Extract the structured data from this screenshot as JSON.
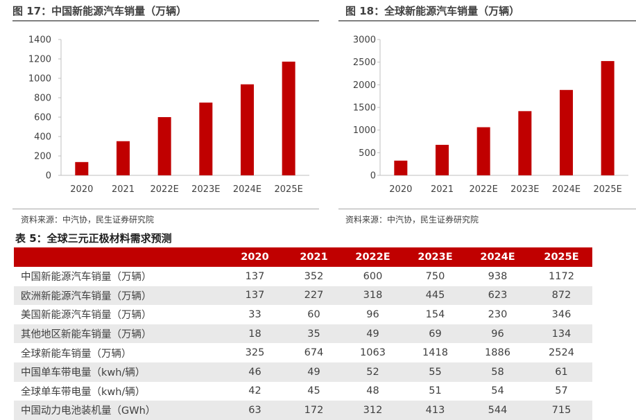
{
  "figures": [
    {
      "title": "图 17：中国新能源汽车销量（万辆）",
      "source": "资料来源：中汽协，民生证券研究院",
      "chart_data": {
        "type": "bar",
        "categories": [
          "2020",
          "2021",
          "2022E",
          "2023E",
          "2024E",
          "2025E"
        ],
        "values": [
          137,
          352,
          600,
          750,
          938,
          1172
        ],
        "ylim": [
          0,
          1400
        ],
        "yticks": [
          0,
          200,
          400,
          600,
          800,
          1000,
          1200,
          1400
        ],
        "color": "#c00000",
        "grid": false,
        "legend": "none"
      }
    },
    {
      "title": "图 18：全球新能源汽车销量（万辆）",
      "source": "资料来源：中汽协，民生证券研究院",
      "chart_data": {
        "type": "bar",
        "categories": [
          "2020",
          "2021",
          "2022E",
          "2023E",
          "2024E",
          "2025E"
        ],
        "values": [
          325,
          674,
          1063,
          1418,
          1886,
          2524
        ],
        "ylim": [
          0,
          3000
        ],
        "yticks": [
          0,
          500,
          1000,
          1500,
          2000,
          2500,
          3000
        ],
        "color": "#c00000",
        "grid": false,
        "legend": "none"
      }
    }
  ],
  "table": {
    "title": "表 5：全球三元正极材料需求预测",
    "columns": [
      "",
      "2020",
      "2021",
      "2022E",
      "2023E",
      "2024E",
      "2025E"
    ],
    "rows": [
      [
        "中国新能源汽车销量（万辆）",
        "137",
        "352",
        "600",
        "750",
        "938",
        "1172"
      ],
      [
        "欧洲新能源汽车销量（万辆）",
        "137",
        "227",
        "318",
        "445",
        "623",
        "872"
      ],
      [
        "美国新能源汽车销量（万辆）",
        "33",
        "60",
        "96",
        "154",
        "230",
        "346"
      ],
      [
        "其他地区新能车销量（万辆）",
        "18",
        "35",
        "49",
        "69",
        "96",
        "134"
      ],
      [
        "全球新能车销量（万辆）",
        "325",
        "674",
        "1063",
        "1418",
        "1886",
        "2524"
      ],
      [
        "中国单车带电量（kwh/辆）",
        "46",
        "49",
        "52",
        "55",
        "58",
        "61"
      ],
      [
        "全球单车带电量（kwh/辆）",
        "42",
        "45",
        "48",
        "51",
        "54",
        "57"
      ],
      [
        "中国动力电池装机量（GWh）",
        "63",
        "172",
        "312",
        "413",
        "544",
        "715"
      ]
    ]
  }
}
